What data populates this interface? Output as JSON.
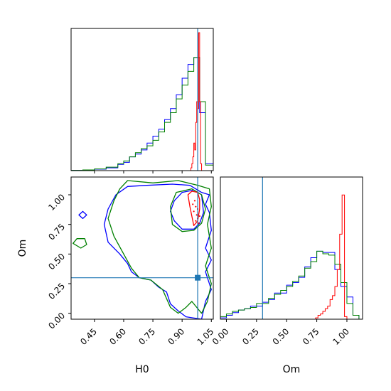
{
  "chart_data": [
    {
      "panel": "H0-histogram",
      "type": "histogram",
      "title": "",
      "xlim": [
        0.33,
        1.06
      ],
      "truth": 0.98,
      "series": [
        {
          "color": "#0000ff",
          "bins": [
            0.33,
            0.39,
            0.45,
            0.51,
            0.57,
            0.6,
            0.63,
            0.66,
            0.69,
            0.72,
            0.75,
            0.78,
            0.81,
            0.84,
            0.87,
            0.9,
            0.93,
            0.96,
            0.99,
            1.02,
            1.06
          ],
          "heights": [
            0.002,
            0.004,
            0.01,
            0.02,
            0.045,
            0.06,
            0.1,
            0.12,
            0.15,
            0.2,
            0.25,
            0.3,
            0.37,
            0.45,
            0.55,
            0.67,
            0.77,
            0.82,
            0.42,
            0.05
          ]
        },
        {
          "color": "#008000",
          "bins": [
            0.33,
            0.39,
            0.45,
            0.51,
            0.57,
            0.6,
            0.63,
            0.66,
            0.69,
            0.72,
            0.75,
            0.78,
            0.81,
            0.84,
            0.87,
            0.9,
            0.93,
            0.96,
            0.99,
            1.02,
            1.06
          ],
          "heights": [
            0.002,
            0.005,
            0.012,
            0.025,
            0.05,
            0.07,
            0.1,
            0.13,
            0.16,
            0.18,
            0.22,
            0.28,
            0.35,
            0.42,
            0.52,
            0.62,
            0.72,
            0.82,
            0.5,
            0.04
          ]
        },
        {
          "color": "#ff0000",
          "bins": [
            0.945,
            0.95,
            0.955,
            0.96,
            0.965,
            0.97,
            0.975,
            0.98,
            0.985,
            0.99,
            0.995,
            1.0
          ],
          "heights": [
            0.02,
            0.05,
            0.1,
            0.2,
            0.15,
            0.35,
            0.5,
            0.45,
            1.0,
            0.5,
            0.05
          ]
        }
      ]
    },
    {
      "panel": "H0-Om-contour",
      "type": "contour",
      "xlabel": "H0",
      "ylabel": "Om",
      "xlim": [
        0.33,
        1.06
      ],
      "ylim": [
        -0.05,
        1.15
      ],
      "xticks": [
        "0.45",
        "0.60",
        "0.75",
        "0.90",
        "1.05"
      ],
      "xtick_values": [
        0.45,
        0.6,
        0.75,
        0.9,
        1.05
      ],
      "yticks": [
        "0.00",
        "0.25",
        "0.50",
        "0.75",
        "1.00"
      ],
      "ytick_values": [
        0.0,
        0.25,
        0.5,
        0.75,
        1.0
      ],
      "truth": {
        "H0": 0.98,
        "Om": 0.3
      },
      "series": [
        {
          "color": "#0000ff",
          "contours": [
            [
              [
                0.62,
                1.07
              ],
              [
                0.72,
                1.08
              ],
              [
                0.85,
                1.09
              ],
              [
                0.94,
                1.08
              ],
              [
                1.0,
                1.02
              ],
              [
                1.04,
                1.0
              ],
              [
                1.02,
                0.92
              ],
              [
                1.04,
                0.85
              ],
              [
                1.05,
                0.7
              ],
              [
                1.02,
                0.55
              ],
              [
                1.05,
                0.45
              ],
              [
                1.02,
                0.35
              ],
              [
                1.05,
                0.2
              ],
              [
                1.02,
                0.1
              ],
              [
                1.0,
                -0.05
              ],
              [
                0.92,
                -0.03
              ],
              [
                0.88,
                0.02
              ],
              [
                0.84,
                0.08
              ],
              [
                0.82,
                0.18
              ],
              [
                0.78,
                0.22
              ],
              [
                0.74,
                0.28
              ],
              [
                0.68,
                0.3
              ],
              [
                0.64,
                0.35
              ],
              [
                0.62,
                0.42
              ],
              [
                0.58,
                0.5
              ],
              [
                0.52,
                0.6
              ],
              [
                0.5,
                0.75
              ],
              [
                0.52,
                0.88
              ],
              [
                0.56,
                1.0
              ],
              [
                0.62,
                1.07
              ]
            ],
            [
              [
                0.86,
                0.95
              ],
              [
                0.9,
                1.02
              ],
              [
                0.96,
                1.04
              ],
              [
                1.0,
                1.0
              ],
              [
                1.01,
                0.85
              ],
              [
                0.99,
                0.76
              ],
              [
                0.96,
                0.71
              ],
              [
                0.9,
                0.71
              ],
              [
                0.86,
                0.78
              ],
              [
                0.84,
                0.86
              ],
              [
                0.86,
                0.95
              ]
            ],
            [
              [
                0.37,
                0.83
              ],
              [
                0.39,
                0.86
              ],
              [
                0.41,
                0.83
              ],
              [
                0.39,
                0.8
              ],
              [
                0.37,
                0.83
              ]
            ]
          ]
        },
        {
          "color": "#008000",
          "contours": [
            [
              [
                0.62,
                1.12
              ],
              [
                0.75,
                1.1
              ],
              [
                0.88,
                1.12
              ],
              [
                0.98,
                1.08
              ],
              [
                1.04,
                1.05
              ],
              [
                1.05,
                0.9
              ],
              [
                1.03,
                0.75
              ],
              [
                1.05,
                0.55
              ],
              [
                1.02,
                0.4
              ],
              [
                1.05,
                0.25
              ],
              [
                1.03,
                0.1
              ],
              [
                1.0,
                0.0
              ],
              [
                0.95,
                0.1
              ],
              [
                0.92,
                0.05
              ],
              [
                0.88,
                0.0
              ],
              [
                0.84,
                0.05
              ],
              [
                0.8,
                0.2
              ],
              [
                0.74,
                0.28
              ],
              [
                0.68,
                0.3
              ],
              [
                0.64,
                0.38
              ],
              [
                0.6,
                0.5
              ],
              [
                0.55,
                0.65
              ],
              [
                0.52,
                0.8
              ],
              [
                0.55,
                0.95
              ],
              [
                0.58,
                1.05
              ],
              [
                0.62,
                1.12
              ]
            ],
            [
              [
                0.84,
                0.9
              ],
              [
                0.87,
                1.02
              ],
              [
                0.95,
                1.05
              ],
              [
                1.0,
                1.0
              ],
              [
                1.02,
                0.88
              ],
              [
                1.0,
                0.76
              ],
              [
                0.96,
                0.7
              ],
              [
                0.9,
                0.69
              ],
              [
                0.85,
                0.75
              ],
              [
                0.84,
                0.9
              ]
            ],
            [
              [
                0.34,
                0.59
              ],
              [
                0.36,
                0.63
              ],
              [
                0.4,
                0.63
              ],
              [
                0.41,
                0.58
              ],
              [
                0.38,
                0.55
              ],
              [
                0.34,
                0.59
              ]
            ]
          ]
        },
        {
          "color": "#ff0000",
          "contours": [
            [
              [
                0.93,
                1.0
              ],
              [
                0.95,
                1.03
              ],
              [
                0.98,
                1.02
              ],
              [
                0.99,
                0.96
              ],
              [
                0.99,
                0.88
              ],
              [
                0.98,
                0.78
              ],
              [
                0.96,
                0.74
              ],
              [
                0.95,
                0.82
              ],
              [
                0.94,
                0.9
              ],
              [
                0.93,
                1.0
              ]
            ]
          ]
        }
      ]
    },
    {
      "panel": "Om-histogram",
      "type": "histogram",
      "xlabel": "Om",
      "xlim": [
        -0.05,
        1.13
      ],
      "xticks": [
        "0.00",
        "0.25",
        "0.50",
        "0.75",
        "1.00"
      ],
      "xtick_values": [
        0.0,
        0.25,
        0.5,
        0.75,
        1.0
      ],
      "truth": 0.3,
      "series": [
        {
          "color": "#0000ff",
          "bins": [
            -0.05,
            0.0,
            0.05,
            0.1,
            0.15,
            0.2,
            0.25,
            0.3,
            0.35,
            0.4,
            0.45,
            0.5,
            0.55,
            0.6,
            0.65,
            0.7,
            0.75,
            0.8,
            0.85,
            0.9,
            0.95,
            1.0,
            1.05,
            1.1
          ],
          "heights": [
            0.01,
            0.03,
            0.05,
            0.07,
            0.08,
            0.1,
            0.1,
            0.13,
            0.15,
            0.2,
            0.2,
            0.26,
            0.28,
            0.32,
            0.4,
            0.47,
            0.52,
            0.51,
            0.51,
            0.38,
            0.25,
            0.17,
            0.03
          ]
        },
        {
          "color": "#008000",
          "bins": [
            -0.05,
            0.0,
            0.05,
            0.1,
            0.15,
            0.2,
            0.25,
            0.3,
            0.35,
            0.4,
            0.45,
            0.5,
            0.55,
            0.6,
            0.65,
            0.7,
            0.75,
            0.8,
            0.85,
            0.9,
            0.95,
            1.0,
            1.05,
            1.1
          ],
          "heights": [
            0.02,
            0.04,
            0.06,
            0.07,
            0.08,
            0.09,
            0.12,
            0.12,
            0.16,
            0.19,
            0.22,
            0.25,
            0.29,
            0.33,
            0.39,
            0.44,
            0.52,
            0.5,
            0.49,
            0.42,
            0.28,
            0.12,
            0.03
          ]
        },
        {
          "color": "#ff0000",
          "bins": [
            0.74,
            0.76,
            0.78,
            0.8,
            0.82,
            0.84,
            0.86,
            0.88,
            0.9,
            0.92,
            0.94,
            0.96,
            0.98,
            1.0
          ],
          "heights": [
            0.01,
            0.03,
            0.04,
            0.06,
            0.08,
            0.1,
            0.15,
            0.18,
            0.25,
            0.38,
            0.65,
            0.95,
            0.02
          ]
        }
      ]
    }
  ],
  "colors": {
    "blue": "#0000ff",
    "green": "#008000",
    "red": "#ff0000",
    "truth": "#1f77b4"
  }
}
